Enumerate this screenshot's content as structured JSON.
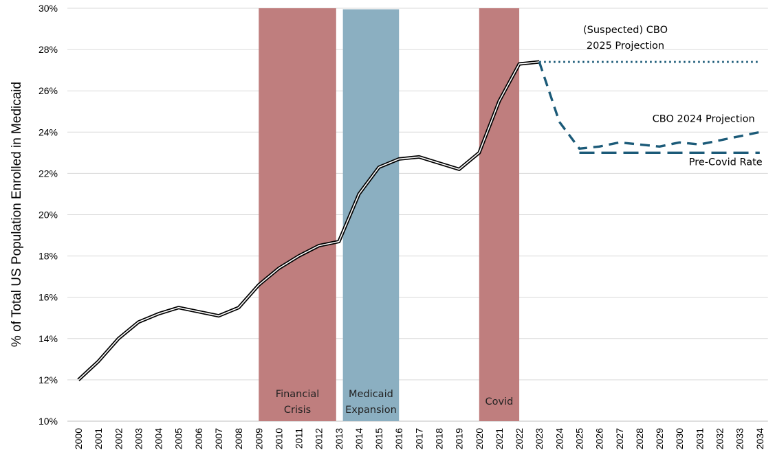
{
  "chart_data": {
    "type": "line",
    "title": "",
    "xlabel": "",
    "ylabel": "% of Total US Population Enrolled in Medicaid",
    "ylim": [
      10,
      30
    ],
    "y_ticks": [
      "10%",
      "12%",
      "14%",
      "16%",
      "18%",
      "20%",
      "22%",
      "24%",
      "26%",
      "28%",
      "30%"
    ],
    "y_tick_values": [
      10,
      12,
      14,
      16,
      18,
      20,
      22,
      24,
      26,
      28,
      30
    ],
    "x": [
      2000,
      2001,
      2002,
      2003,
      2004,
      2005,
      2006,
      2007,
      2008,
      2009,
      2010,
      2011,
      2012,
      2013,
      2014,
      2015,
      2016,
      2017,
      2018,
      2019,
      2020,
      2021,
      2022,
      2023,
      2024,
      2025,
      2026,
      2027,
      2028,
      2029,
      2030,
      2031,
      2032,
      2033,
      2034
    ],
    "x_tick_labels": [
      "2000",
      "2001",
      "2002",
      "2003",
      "2004",
      "2005",
      "2006",
      "2007",
      "2008",
      "2009",
      "2010",
      "2011",
      "2012",
      "2013",
      "2014",
      "2015",
      "2016",
      "2017",
      "2018",
      "2019",
      "2020",
      "2021",
      "2022",
      "2023",
      "2024",
      "2025",
      "2026",
      "2027",
      "2028",
      "2029",
      "2030",
      "2031",
      "2032",
      "2033",
      "2034"
    ],
    "grid": true,
    "legend": "none",
    "series": [
      {
        "key": "historical",
        "style": "double-line",
        "color": "#000000",
        "x": [
          2000,
          2001,
          2002,
          2003,
          2004,
          2005,
          2006,
          2007,
          2008,
          2009,
          2010,
          2011,
          2012,
          2013,
          2014,
          2015,
          2016,
          2017,
          2018,
          2019,
          2020,
          2021,
          2022,
          2023
        ],
        "values": [
          12.0,
          12.9,
          14.0,
          14.8,
          15.2,
          15.5,
          15.3,
          15.1,
          15.5,
          16.6,
          17.4,
          18.0,
          18.5,
          18.7,
          21.0,
          22.3,
          22.7,
          22.8,
          22.5,
          22.2,
          23.0,
          25.5,
          27.3,
          27.4
        ]
      },
      {
        "key": "cbo_2025",
        "name": "(Suspected) CBO 2025 Projection",
        "style": "dotted",
        "color": "#1b5a78",
        "x": [
          2023,
          2034
        ],
        "values": [
          27.4,
          27.4
        ]
      },
      {
        "key": "cbo_2024",
        "name": "CBO 2024 Projection",
        "style": "dashed",
        "color": "#1b5a78",
        "x": [
          2023,
          2024,
          2025,
          2026,
          2027,
          2028,
          2029,
          2030,
          2031,
          2032,
          2033,
          2034
        ],
        "values": [
          27.4,
          24.5,
          23.2,
          23.3,
          23.5,
          23.4,
          23.3,
          23.5,
          23.4,
          23.6,
          23.8,
          24.0
        ]
      },
      {
        "key": "pre_covid",
        "name": "Pre-Covid Rate",
        "style": "long-dash",
        "color": "#1b5a78",
        "x": [
          2025,
          2034
        ],
        "values": [
          23.0,
          23.0
        ]
      }
    ],
    "bands": [
      {
        "label": [
          "Financial",
          "Crisis"
        ],
        "x_start": 2009,
        "x_end": 2013,
        "y_top": 30,
        "color": "#bf7e7e"
      },
      {
        "label": [
          "Medicaid",
          "Expansion"
        ],
        "x_start": 2013.2,
        "x_end": 2016,
        "y_top": 29.95,
        "color": "#8bafc1"
      },
      {
        "label": [
          "Covid"
        ],
        "x_start": 2020,
        "x_end": 2022,
        "y_top": 30,
        "color": "#bf7e7e"
      }
    ],
    "annotations": [
      {
        "key": "cbo_2025_label",
        "lines": [
          "(Suspected) CBO",
          "2025 Projection"
        ],
        "x": 2027.3,
        "y": 28.8
      },
      {
        "key": "cbo_2024_label",
        "lines": [
          "CBO 2024 Projection"
        ],
        "x": 2031.2,
        "y": 24.5
      },
      {
        "key": "pre_covid_label",
        "lines": [
          "Pre-Covid Rate"
        ],
        "x": 2032.3,
        "y": 22.4
      }
    ]
  }
}
